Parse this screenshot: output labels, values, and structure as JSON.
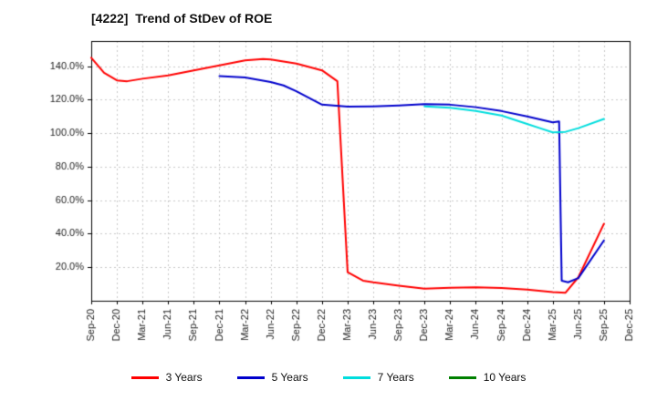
{
  "chart_data": {
    "type": "line",
    "title": "[4222]  Trend of StDev of ROE",
    "x_labels": [
      "Sep-20",
      "Dec-20",
      "Mar-21",
      "Jun-21",
      "Sep-21",
      "Dec-21",
      "Mar-22",
      "Jun-22",
      "Sep-22",
      "Dec-22",
      "Mar-23",
      "Jun-23",
      "Sep-23",
      "Dec-23",
      "Mar-24",
      "Jun-24",
      "Sep-24",
      "Dec-24",
      "Mar-25",
      "Jun-25",
      "Sep-25",
      "Dec-25"
    ],
    "y_ticks": [
      20,
      40,
      60,
      80,
      100,
      120,
      140
    ],
    "y_tick_labels": [
      "20.0%",
      "40.0%",
      "60.0%",
      "80.0%",
      "100.0%",
      "120.0%",
      "140.0%"
    ],
    "ylim": [
      0,
      155
    ],
    "grid": true,
    "grid_color": "#c8c8c8",
    "frame_color": "#000000",
    "legend_position": "bottom",
    "series": [
      {
        "name": "3 Years",
        "color": "#ff0000",
        "points": [
          [
            0,
            145
          ],
          [
            0.5,
            136
          ],
          [
            1,
            131.5
          ],
          [
            1.4,
            131
          ],
          [
            2,
            132.5
          ],
          [
            3,
            134.5
          ],
          [
            4,
            137.5
          ],
          [
            5,
            140.5
          ],
          [
            6,
            143.5
          ],
          [
            6.7,
            144.2
          ],
          [
            7,
            144
          ],
          [
            8,
            141.5
          ],
          [
            9,
            137.5
          ],
          [
            9.6,
            131
          ],
          [
            10,
            17
          ],
          [
            10.6,
            12
          ],
          [
            11,
            11
          ],
          [
            12,
            9
          ],
          [
            13,
            7.2
          ],
          [
            14,
            7.8
          ],
          [
            15,
            8
          ],
          [
            16,
            7.6
          ],
          [
            17,
            6.6
          ],
          [
            18,
            5.2
          ],
          [
            18.5,
            4.8
          ],
          [
            19,
            14
          ],
          [
            20,
            46
          ]
        ]
      },
      {
        "name": "5 Years",
        "color": "#0000cc",
        "points": [
          [
            5,
            134
          ],
          [
            6,
            133.2
          ],
          [
            7,
            130.5
          ],
          [
            7.5,
            128.5
          ],
          [
            8,
            125
          ],
          [
            9,
            117
          ],
          [
            10,
            115.8
          ],
          [
            11,
            116
          ],
          [
            12,
            116.5
          ],
          [
            13,
            117.3
          ],
          [
            14,
            117
          ],
          [
            15,
            115.5
          ],
          [
            16,
            113.2
          ],
          [
            17,
            110
          ],
          [
            18,
            106.5
          ],
          [
            18.25,
            107
          ],
          [
            18.35,
            12
          ],
          [
            18.6,
            11
          ],
          [
            19,
            13.5
          ],
          [
            20,
            36
          ]
        ]
      },
      {
        "name": "7 Years",
        "color": "#00dddd",
        "points": [
          [
            13,
            116
          ],
          [
            14,
            115.2
          ],
          [
            15,
            113.2
          ],
          [
            16,
            110.5
          ],
          [
            17,
            105.5
          ],
          [
            17.5,
            103
          ],
          [
            18,
            100.5
          ],
          [
            18.5,
            100.8
          ],
          [
            19,
            103
          ],
          [
            20,
            108.5
          ]
        ]
      },
      {
        "name": "10 Years",
        "color": "#008000",
        "points": []
      }
    ]
  }
}
